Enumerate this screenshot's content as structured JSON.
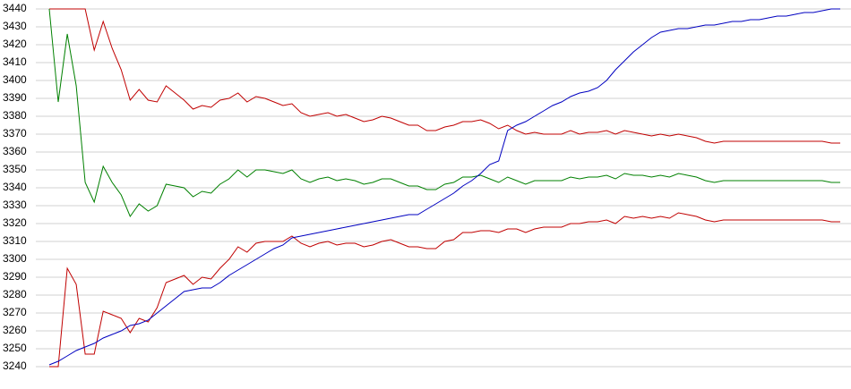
{
  "chart_data": {
    "type": "line",
    "ylim": [
      3240,
      3440
    ],
    "yticks": [
      3240,
      3250,
      3260,
      3270,
      3280,
      3290,
      3300,
      3310,
      3320,
      3330,
      3340,
      3350,
      3360,
      3370,
      3380,
      3390,
      3400,
      3410,
      3420,
      3430,
      3440
    ],
    "grid": true,
    "series": [
      {
        "color": "#c00000",
        "values": [
          3440,
          3440,
          3440,
          3440,
          3440,
          3417,
          3433,
          3418,
          3406,
          3389,
          3395,
          3389,
          3388,
          3397,
          3393,
          3389,
          3384,
          3386,
          3385,
          3389,
          3390,
          3393,
          3388,
          3391,
          3390,
          3388,
          3386,
          3387,
          3382,
          3380,
          3381,
          3382,
          3380,
          3381,
          3379,
          3377,
          3378,
          3380,
          3379,
          3377,
          3375,
          3375,
          3372,
          3372,
          3374,
          3375,
          3377,
          3377,
          3378,
          3376,
          3373,
          3375,
          3372,
          3370,
          3371,
          3370,
          3370,
          3370,
          3372,
          3370,
          3371,
          3371,
          3372,
          3370,
          3372,
          3371,
          3370,
          3369,
          3370,
          3369,
          3370,
          3369,
          3368,
          3366,
          3365,
          3366,
          3366,
          3366,
          3366,
          3366,
          3366,
          3366,
          3366,
          3366,
          3366,
          3366,
          3366,
          3365,
          3365
        ]
      },
      {
        "color": "#008000",
        "values": [
          3440,
          3388,
          3426,
          3397,
          3343,
          3332,
          3352,
          3343,
          3336,
          3324,
          3331,
          3327,
          3330,
          3342,
          3341,
          3340,
          3335,
          3338,
          3337,
          3342,
          3345,
          3350,
          3346,
          3350,
          3350,
          3349,
          3348,
          3350,
          3345,
          3343,
          3345,
          3346,
          3344,
          3345,
          3344,
          3342,
          3343,
          3345,
          3345,
          3343,
          3341,
          3341,
          3339,
          3339,
          3342,
          3343,
          3346,
          3346,
          3347,
          3345,
          3343,
          3346,
          3344,
          3342,
          3344,
          3344,
          3344,
          3344,
          3346,
          3345,
          3346,
          3346,
          3347,
          3345,
          3348,
          3347,
          3347,
          3346,
          3347,
          3346,
          3348,
          3347,
          3346,
          3344,
          3343,
          3344,
          3344,
          3344,
          3344,
          3344,
          3344,
          3344,
          3344,
          3344,
          3344,
          3344,
          3344,
          3343,
          3343
        ]
      },
      {
        "color": "#c00000",
        "values": [
          3240,
          3240,
          3295,
          3286,
          3247,
          3247,
          3271,
          3269,
          3267,
          3259,
          3267,
          3265,
          3273,
          3287,
          3289,
          3291,
          3286,
          3290,
          3289,
          3295,
          3300,
          3307,
          3304,
          3309,
          3310,
          3310,
          3310,
          3313,
          3309,
          3307,
          3309,
          3310,
          3308,
          3309,
          3309,
          3307,
          3308,
          3310,
          3311,
          3309,
          3307,
          3307,
          3306,
          3306,
          3310,
          3311,
          3315,
          3315,
          3316,
          3316,
          3315,
          3317,
          3317,
          3315,
          3317,
          3318,
          3318,
          3318,
          3320,
          3320,
          3321,
          3321,
          3322,
          3320,
          3324,
          3323,
          3324,
          3323,
          3324,
          3323,
          3326,
          3325,
          3324,
          3322,
          3321,
          3322,
          3322,
          3322,
          3322,
          3322,
          3322,
          3322,
          3322,
          3322,
          3322,
          3322,
          3322,
          3321,
          3321
        ]
      },
      {
        "color": "#0000c0",
        "values": [
          3241,
          3243,
          3246,
          3249,
          3251,
          3253,
          3256,
          3258,
          3260,
          3263,
          3264,
          3266,
          3270,
          3274,
          3278,
          3282,
          3283,
          3284,
          3284,
          3287,
          3291,
          3294,
          3297,
          3300,
          3303,
          3306,
          3308,
          3312,
          3313,
          3314,
          3315,
          3316,
          3317,
          3318,
          3319,
          3320,
          3321,
          3322,
          3323,
          3324,
          3325,
          3325,
          3328,
          3331,
          3334,
          3337,
          3341,
          3344,
          3348,
          3353,
          3355,
          3372,
          3375,
          3377,
          3380,
          3383,
          3386,
          3388,
          3391,
          3393,
          3394,
          3396,
          3400,
          3406,
          3411,
          3416,
          3420,
          3424,
          3427,
          3428,
          3429,
          3429,
          3430,
          3431,
          3431,
          3432,
          3433,
          3433,
          3434,
          3434,
          3435,
          3436,
          3436,
          3437,
          3438,
          3438,
          3439,
          3440,
          3440
        ]
      }
    ]
  }
}
